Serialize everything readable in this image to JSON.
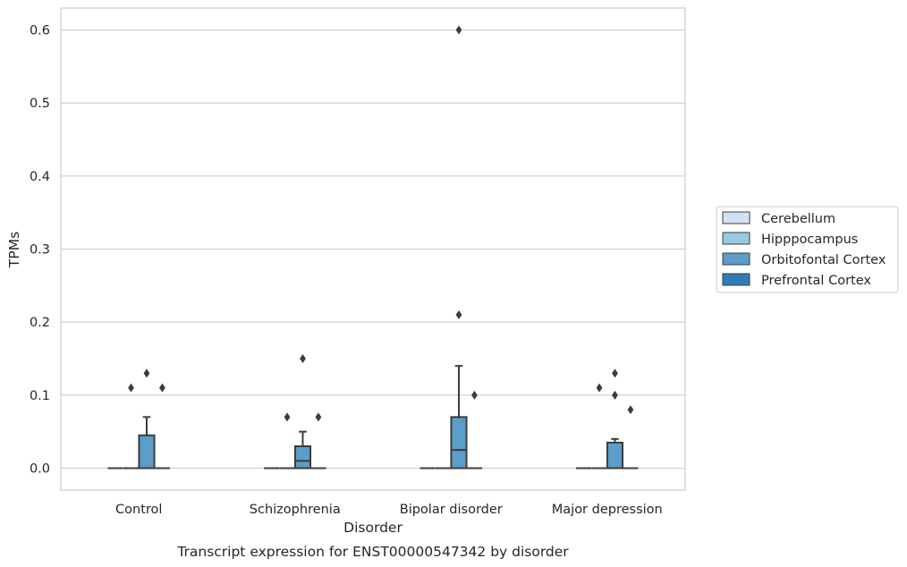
{
  "chart_data": {
    "type": "box",
    "xlabel": "Disorder",
    "ylabel": "TPMs",
    "caption": "Transcript expression for ENST00000547342 by disorder",
    "ylim": [
      -0.03,
      0.63
    ],
    "yticks": [
      "0.0",
      "0.1",
      "0.2",
      "0.3",
      "0.4",
      "0.5",
      "0.6"
    ],
    "grid": true,
    "legend_position": "right",
    "categories": [
      "Control",
      "Schizophrenia",
      "Bipolar disorder",
      "Major depression"
    ],
    "series": [
      {
        "name": "Cerebellum",
        "color": "#d1e3f3",
        "boxes": [
          {
            "q1": 0,
            "median": 0,
            "q3": 0,
            "whislo": 0,
            "whishi": 0,
            "fliers": []
          },
          {
            "q1": 0,
            "median": 0,
            "q3": 0,
            "whislo": 0,
            "whishi": 0,
            "fliers": []
          },
          {
            "q1": 0,
            "median": 0,
            "q3": 0,
            "whislo": 0,
            "whishi": 0,
            "fliers": []
          },
          {
            "q1": 0,
            "median": 0,
            "q3": 0,
            "whislo": 0,
            "whishi": 0,
            "fliers": []
          }
        ]
      },
      {
        "name": "Hipppocampus",
        "color": "#9ac8e0",
        "boxes": [
          {
            "q1": 0,
            "median": 0,
            "q3": 0,
            "whislo": 0,
            "whishi": 0,
            "fliers": [
              0.11
            ]
          },
          {
            "q1": 0,
            "median": 0,
            "q3": 0,
            "whislo": 0,
            "whishi": 0,
            "fliers": [
              0.07
            ]
          },
          {
            "q1": 0,
            "median": 0,
            "q3": 0,
            "whislo": 0,
            "whishi": 0,
            "fliers": []
          },
          {
            "q1": 0,
            "median": 0,
            "q3": 0,
            "whislo": 0,
            "whishi": 0,
            "fliers": [
              0.11
            ]
          }
        ]
      },
      {
        "name": "Orbitofontal Cortex",
        "color": "#5a9ec9",
        "boxes": [
          {
            "q1": 0,
            "median": 0,
            "q3": 0.045,
            "whislo": 0,
            "whishi": 0.07,
            "fliers": [
              0.13
            ]
          },
          {
            "q1": 0,
            "median": 0.01,
            "q3": 0.03,
            "whislo": 0,
            "whishi": 0.05,
            "fliers": [
              0.15
            ]
          },
          {
            "q1": 0,
            "median": 0.025,
            "q3": 0.07,
            "whislo": 0,
            "whishi": 0.14,
            "fliers": [
              0.21,
              0.6
            ]
          },
          {
            "q1": 0,
            "median": 0,
            "q3": 0.035,
            "whislo": 0,
            "whishi": 0.04,
            "fliers": [
              0.1,
              0.13
            ]
          }
        ]
      },
      {
        "name": "Prefrontal Cortex",
        "color": "#2d7dbb",
        "boxes": [
          {
            "q1": 0,
            "median": 0,
            "q3": 0,
            "whislo": 0,
            "whishi": 0,
            "fliers": [
              0.11
            ]
          },
          {
            "q1": 0,
            "median": 0,
            "q3": 0,
            "whislo": 0,
            "whishi": 0,
            "fliers": [
              0.07
            ]
          },
          {
            "q1": 0,
            "median": 0,
            "q3": 0,
            "whislo": 0,
            "whishi": 0,
            "fliers": [
              0.1
            ]
          },
          {
            "q1": 0,
            "median": 0,
            "q3": 0,
            "whislo": 0,
            "whishi": 0,
            "fliers": [
              0.08
            ]
          }
        ]
      }
    ]
  }
}
